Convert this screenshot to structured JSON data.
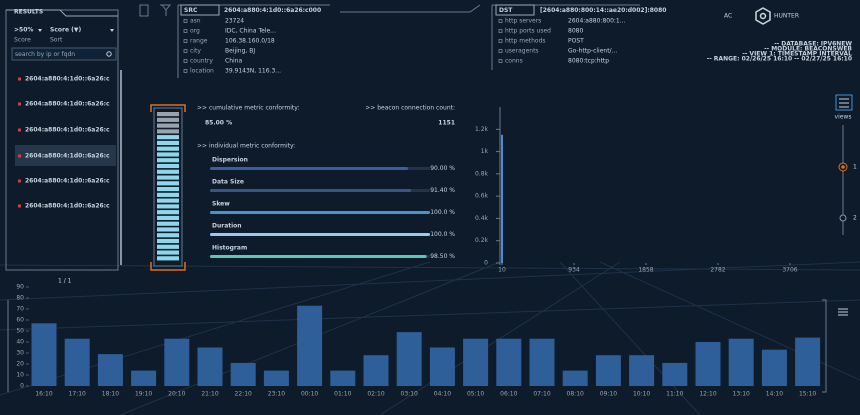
{
  "results": {
    "title": "RESULTS",
    "filter": {
      "value": ">50%",
      "label": "Score"
    },
    "sort": {
      "value": "Score (▼)",
      "label": "Sort"
    },
    "search_placeholder": "search by ip or fqdn",
    "items": [
      "2604:a880:4:1d0::6a26:c",
      "2604:a880:4:1d0::6a26:c",
      "2604:a880:4:1d0::6a26:c",
      "2604:a880:4:1d0::6a26:c",
      "2604:a880:4:1d0::6a26:c",
      "2604:a880:4:1d0::6a26:c"
    ],
    "selected": 3,
    "pagination": "1 / 1"
  },
  "src": {
    "title": "SRC",
    "address": "2604:a880:4:1d0::6a26:c000",
    "fields": [
      {
        "key": "asn",
        "value": "23724"
      },
      {
        "key": "org",
        "value": "IDC, China Tele..."
      },
      {
        "key": "range",
        "value": "106.38.160.0/18"
      },
      {
        "key": "city",
        "value": "Beijing, BJ"
      },
      {
        "key": "country",
        "value": "China"
      },
      {
        "key": "location",
        "value": "39.9143N, 116.3..."
      }
    ]
  },
  "dst": {
    "title": "DST",
    "address": "[2604:a880:800:14::ae20:d002]:8080",
    "fields": [
      {
        "key": "http servers",
        "value": "2604:a880:800:1..."
      },
      {
        "key": "http ports used",
        "value": "8080"
      },
      {
        "key": "http methods",
        "value": "POST"
      },
      {
        "key": "useragents",
        "value": "Go-http-client/..."
      },
      {
        "key": "conns",
        "value": "8080:tcp:http"
      }
    ]
  },
  "logo": {
    "left": "AC",
    "right": "HUNTER"
  },
  "context": [
    "-- DATABASE: IPV6NEW",
    "-- MODULE: BEACONSWEB",
    "-- VIEW 1: TIMESTAMP INTERVAL",
    "-- RANGE: 02/26/25 16:10 -- 02/27/25 16:10"
  ],
  "metrics": {
    "cumulative_label": ">> cumulative metric conformity:",
    "cumulative": 85,
    "cumulative_label_value": "85.00 %",
    "count_label": ">> beacon connection count:",
    "count": 1151,
    "individual_label": ">> individual metric conformity:",
    "individual": [
      {
        "name": "Dispersion",
        "value": 90,
        "value_label": "90.00 %"
      },
      {
        "name": "Data Size",
        "value": 91.4,
        "value_label": "91.40 %"
      },
      {
        "name": "Skew",
        "value": 100,
        "value_label": "100.0 %"
      },
      {
        "name": "Duration",
        "value": 100,
        "value_label": "100.0 %"
      },
      {
        "name": "Histogram",
        "value": 98.5,
        "value_label": "98.50 %"
      }
    ]
  },
  "histogram": {
    "x": [
      10
    ],
    "values": [
      1151
    ],
    "xlim": [
      10,
      3706
    ],
    "xticks": [
      10,
      934,
      1858,
      2782,
      3706
    ],
    "ylim": [
      0,
      1400
    ],
    "yticks": [
      0,
      {
        "value": 200,
        "label": "0.2k"
      },
      {
        "value": 400,
        "label": "0.4k"
      },
      {
        "value": 600,
        "label": "0.6k"
      },
      {
        "value": 800,
        "label": "0.8k"
      },
      {
        "value": 1000,
        "label": "1k"
      },
      {
        "value": 1200,
        "label": "1.2k"
      }
    ]
  },
  "views": {
    "label": "views",
    "items": [
      "1",
      "2"
    ]
  },
  "timeline": {
    "categories": [
      "16:10",
      "17:10",
      "18:10",
      "19:10",
      "20:10",
      "21:10",
      "22:10",
      "23:10",
      "00:10",
      "01:10",
      "02:10",
      "03:10",
      "04:10",
      "05:10",
      "06:10",
      "07:10",
      "08:10",
      "09:10",
      "10:10",
      "11:10",
      "12:10",
      "13:10",
      "14:10",
      "15:10"
    ],
    "values": [
      57,
      43,
      29,
      14,
      43,
      35,
      21,
      14,
      73,
      14,
      28,
      49,
      35,
      43,
      43,
      43,
      14,
      28,
      28,
      21,
      40,
      43,
      33,
      44
    ],
    "ylim": [
      0,
      90
    ],
    "yticks": [
      0,
      10,
      20,
      30,
      40,
      50,
      60,
      70,
      80,
      90
    ],
    "color": "#2e5f98"
  }
}
